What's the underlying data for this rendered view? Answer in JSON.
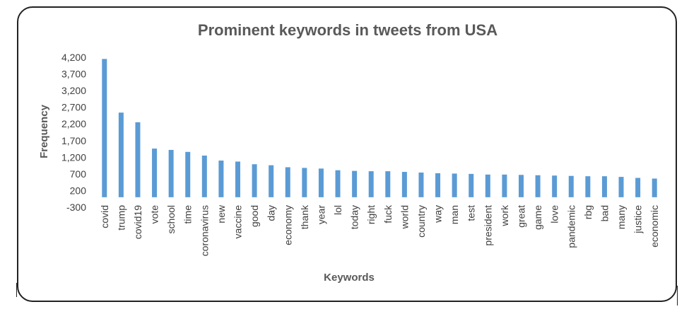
{
  "chart_data": {
    "type": "bar",
    "title": "Prominent keywords in tweets from USA",
    "xlabel": "Keywords",
    "ylabel": "Frequency",
    "ylim": [
      -300,
      4200
    ],
    "yticks": [
      "4,200",
      "3,700",
      "3,200",
      "2,700",
      "2,200",
      "1,700",
      "1,200",
      "700",
      "200",
      "-300"
    ],
    "grid": false,
    "legend": "none",
    "bar_color": "#5b9bd5",
    "categories": [
      "covid",
      "trump",
      "covid19",
      "vote",
      "school",
      "time",
      "coronavirus",
      "new",
      "vaccine",
      "good",
      "day",
      "economy",
      "thank",
      "year",
      "lol",
      "today",
      "right",
      "fuck",
      "world",
      "country",
      "way",
      "man",
      "test",
      "president",
      "work",
      "great",
      "game",
      "love",
      "pandemic",
      "rbg",
      "bad",
      "many",
      "justice",
      "economic"
    ],
    "values": [
      4150,
      2540,
      2250,
      1460,
      1420,
      1360,
      1250,
      1100,
      1070,
      990,
      960,
      900,
      880,
      860,
      810,
      790,
      780,
      780,
      760,
      740,
      720,
      710,
      700,
      680,
      680,
      670,
      660,
      650,
      640,
      630,
      630,
      610,
      580,
      560
    ]
  }
}
